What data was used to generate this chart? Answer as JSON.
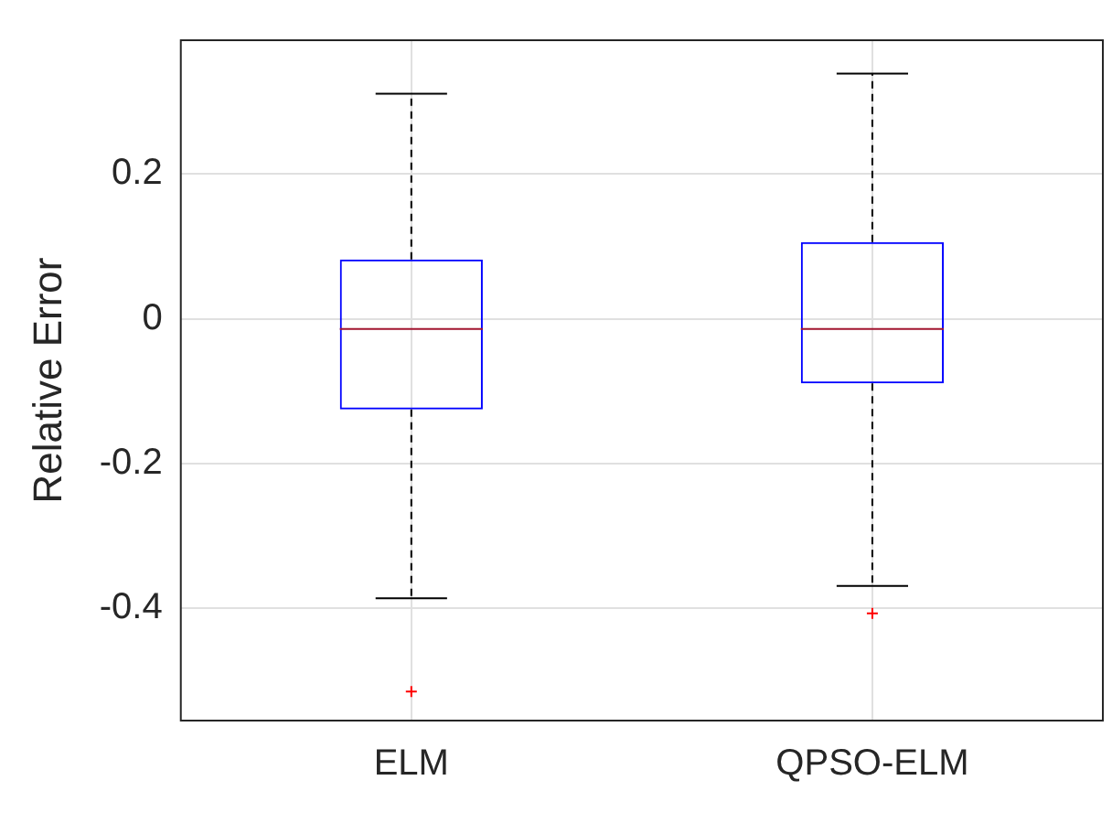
{
  "chart_data": {
    "type": "box",
    "ylabel": "Relative Error",
    "categories": [
      "ELM",
      "QPSO-ELM"
    ],
    "series": [
      {
        "color": "#0000ff",
        "boxes": [
          {
            "low": -0.386,
            "q1": -0.125,
            "median": -0.014,
            "q3": 0.082,
            "high": 0.311,
            "outliers": [
              -0.515
            ]
          },
          {
            "low": -0.369,
            "q1": -0.089,
            "median": -0.014,
            "q3": 0.106,
            "high": 0.339,
            "outliers": [
              -0.407
            ]
          }
        ]
      }
    ],
    "ylim": [
      -0.555,
      0.385
    ],
    "yticks": [
      {
        "value": 0.2,
        "label": "0.2"
      },
      {
        "value": 0,
        "label": "0"
      },
      {
        "value": -0.2,
        "label": "-0.2"
      },
      {
        "value": -0.4,
        "label": "-0.4"
      }
    ],
    "grid": true,
    "legend": false
  }
}
